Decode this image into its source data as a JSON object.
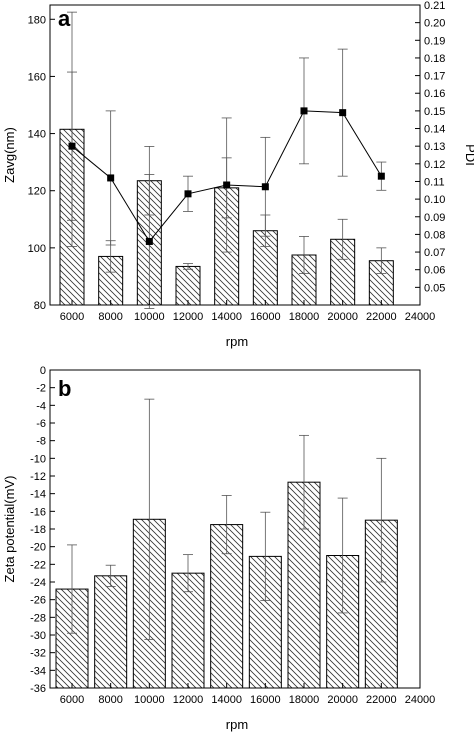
{
  "chart_data": [
    {
      "panel_label": "a",
      "type": "bar",
      "categories": [
        "6000",
        "8000",
        "10000",
        "12000",
        "14000",
        "16000",
        "18000",
        "20000",
        "22000"
      ],
      "xlabel": "rpm",
      "ylabel": "Zavg(nm)",
      "y2label": "PDI",
      "x_ticks": [
        "6000",
        "8000",
        "10000",
        "12000",
        "14000",
        "16000",
        "18000",
        "20000",
        "22000",
        "24000"
      ],
      "ylim": [
        80,
        185
      ],
      "y_ticks": [
        "80",
        "100",
        "120",
        "140",
        "160",
        "180"
      ],
      "y2lim": [
        0.04,
        0.21
      ],
      "y2_ticks": [
        "0.05",
        "0.06",
        "0.07",
        "0.08",
        "0.09",
        "0.10",
        "0.11",
        "0.12",
        "0.13",
        "0.14",
        "0.15",
        "0.16",
        "0.17",
        "0.18",
        "0.19",
        "0.20",
        "0.21"
      ],
      "series": [
        {
          "style": "hatched-bar",
          "axis": "left",
          "values": [
            141.5,
            97,
            123.5,
            93.5,
            121,
            106,
            97.5,
            103,
            95.5
          ],
          "error": [
            41,
            5.5,
            12,
            1,
            10.5,
            5.5,
            6.5,
            7,
            4.5
          ]
        },
        {
          "style": "line-square-marker",
          "axis": "right",
          "values": [
            0.13,
            0.112,
            0.076,
            0.103,
            0.108,
            0.107,
            0.15,
            0.149,
            0.113
          ],
          "error": [
            0.042,
            0.038,
            0.038,
            0.01,
            0.038,
            0.028,
            0.03,
            0.036,
            0.008
          ]
        }
      ]
    },
    {
      "panel_label": "b",
      "type": "bar",
      "categories": [
        "6000",
        "8000",
        "10000",
        "12000",
        "14000",
        "16000",
        "18000",
        "20000",
        "22000"
      ],
      "xlabel": "rpm",
      "ylabel": "Zeta potential(mV)",
      "x_ticks": [
        "6000",
        "8000",
        "10000",
        "12000",
        "14000",
        "16000",
        "18000",
        "20000",
        "22000",
        "24000"
      ],
      "ylim": [
        -36,
        0
      ],
      "y_ticks": [
        "0",
        "-2",
        "-4",
        "-6",
        "-8",
        "-10",
        "-12",
        "-14",
        "-16",
        "-18",
        "-20",
        "-22",
        "-24",
        "-26",
        "-28",
        "-30",
        "-32",
        "-34",
        "-36"
      ],
      "series": [
        {
          "style": "hatched-bar",
          "axis": "left",
          "values": [
            -24.8,
            -23.3,
            -16.9,
            -23.0,
            -17.5,
            -21.1,
            -12.7,
            -21.0,
            -17.0
          ],
          "error": [
            5.0,
            1.2,
            13.6,
            2.1,
            3.3,
            5.0,
            5.3,
            6.5,
            7.0
          ]
        }
      ]
    }
  ]
}
